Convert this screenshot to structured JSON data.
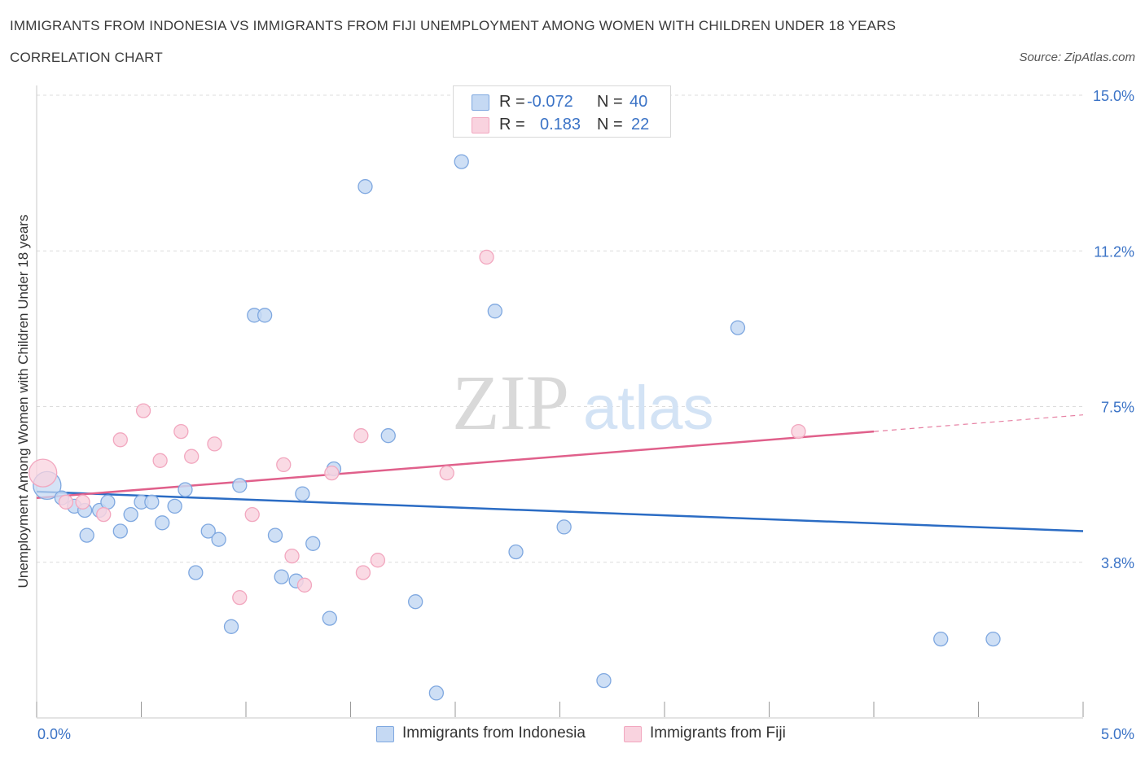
{
  "header": {
    "title_line1": "IMMIGRANTS FROM INDONESIA VS IMMIGRANTS FROM FIJI UNEMPLOYMENT AMONG WOMEN WITH CHILDREN UNDER 18 YEARS",
    "title_line2": "CORRELATION CHART",
    "source": "Source: ZipAtlas.com"
  },
  "watermark": {
    "zip": "ZIP",
    "atlas": "atlas"
  },
  "stats_legend": [
    {
      "r_label": "R =",
      "r_value": "-0.072",
      "n_label": "N =",
      "n_value": "40",
      "color": "#7fa8e0"
    },
    {
      "r_label": "R =",
      "r_value": "0.183",
      "n_label": "N =",
      "n_value": "22",
      "color": "#f2a7bf"
    }
  ],
  "colors": {
    "indonesia_fill": "#c5d9f3",
    "indonesia_stroke": "#7fa8e0",
    "indonesia_line": "#2b6cc4",
    "fiji_fill": "#f9d3df",
    "fiji_stroke": "#f2a7bf",
    "fiji_line": "#e0608b",
    "tick_label": "#3b73c6",
    "grid": "#dcdcdc",
    "axis": "#888888"
  },
  "chart_data": {
    "type": "scatter",
    "title": "IMMIGRANTS FROM INDONESIA VS IMMIGRANTS FROM FIJI UNEMPLOYMENT AMONG WOMEN WITH CHILDREN UNDER 18 YEARS",
    "subtitle": "CORRELATION CHART",
    "xlabel": "",
    "ylabel": "Unemployment Among Women with Children Under 18 years",
    "xlim": [
      0,
      5
    ],
    "ylim": [
      0,
      15
    ],
    "x_tick_labels": [
      "0.0%",
      "5.0%"
    ],
    "x_tick_values": [
      0,
      5
    ],
    "y_tick_labels": [
      "3.8%",
      "7.5%",
      "11.2%",
      "15.0%"
    ],
    "y_tick_values": [
      3.75,
      7.5,
      11.25,
      15.0
    ],
    "grid": true,
    "legend_position": "bottom-center",
    "series": [
      {
        "name": "Immigrants from Indonesia",
        "points": [
          [
            0.05,
            5.6
          ],
          [
            0.12,
            5.3
          ],
          [
            0.18,
            5.1
          ],
          [
            0.23,
            5.0
          ],
          [
            0.24,
            4.4
          ],
          [
            0.3,
            5.0
          ],
          [
            0.34,
            5.2
          ],
          [
            0.4,
            4.5
          ],
          [
            0.45,
            4.9
          ],
          [
            0.5,
            5.2
          ],
          [
            0.55,
            5.2
          ],
          [
            0.6,
            4.7
          ],
          [
            0.66,
            5.1
          ],
          [
            0.71,
            5.5
          ],
          [
            0.76,
            3.5
          ],
          [
            0.82,
            4.5
          ],
          [
            0.87,
            4.3
          ],
          [
            0.93,
            2.2
          ],
          [
            0.97,
            5.6
          ],
          [
            1.04,
            9.7
          ],
          [
            1.09,
            9.7
          ],
          [
            1.14,
            4.4
          ],
          [
            1.17,
            3.4
          ],
          [
            1.24,
            3.3
          ],
          [
            1.27,
            5.4
          ],
          [
            1.32,
            4.2
          ],
          [
            1.4,
            2.4
          ],
          [
            1.42,
            6.0
          ],
          [
            1.57,
            12.8
          ],
          [
            1.68,
            6.8
          ],
          [
            1.81,
            2.8
          ],
          [
            1.91,
            0.6
          ],
          [
            2.03,
            13.4
          ],
          [
            2.19,
            9.8
          ],
          [
            2.29,
            4.0
          ],
          [
            2.52,
            4.6
          ],
          [
            2.71,
            0.9
          ],
          [
            3.35,
            9.4
          ],
          [
            4.32,
            1.9
          ],
          [
            4.57,
            1.9
          ]
        ],
        "trend": {
          "x": [
            0.0,
            5.0
          ],
          "y": [
            5.45,
            4.5
          ]
        }
      },
      {
        "name": "Immigrants from Fiji",
        "points": [
          [
            0.03,
            5.9
          ],
          [
            0.14,
            5.2
          ],
          [
            0.22,
            5.2
          ],
          [
            0.32,
            4.9
          ],
          [
            0.4,
            6.7
          ],
          [
            0.51,
            7.4
          ],
          [
            0.59,
            6.2
          ],
          [
            0.69,
            6.9
          ],
          [
            0.74,
            6.3
          ],
          [
            0.85,
            6.6
          ],
          [
            0.97,
            2.9
          ],
          [
            1.03,
            4.9
          ],
          [
            1.18,
            6.1
          ],
          [
            1.22,
            3.9
          ],
          [
            1.28,
            3.2
          ],
          [
            1.41,
            5.9
          ],
          [
            1.55,
            6.8
          ],
          [
            1.56,
            3.5
          ],
          [
            1.63,
            3.8
          ],
          [
            1.96,
            5.9
          ],
          [
            2.15,
            11.1
          ],
          [
            3.64,
            6.9
          ]
        ],
        "trend": {
          "x": [
            0.0,
            4.0
          ],
          "y": [
            5.3,
            6.9
          ]
        },
        "trend_extension": {
          "x": [
            4.0,
            5.0
          ],
          "y": [
            6.9,
            7.3
          ]
        }
      }
    ]
  }
}
